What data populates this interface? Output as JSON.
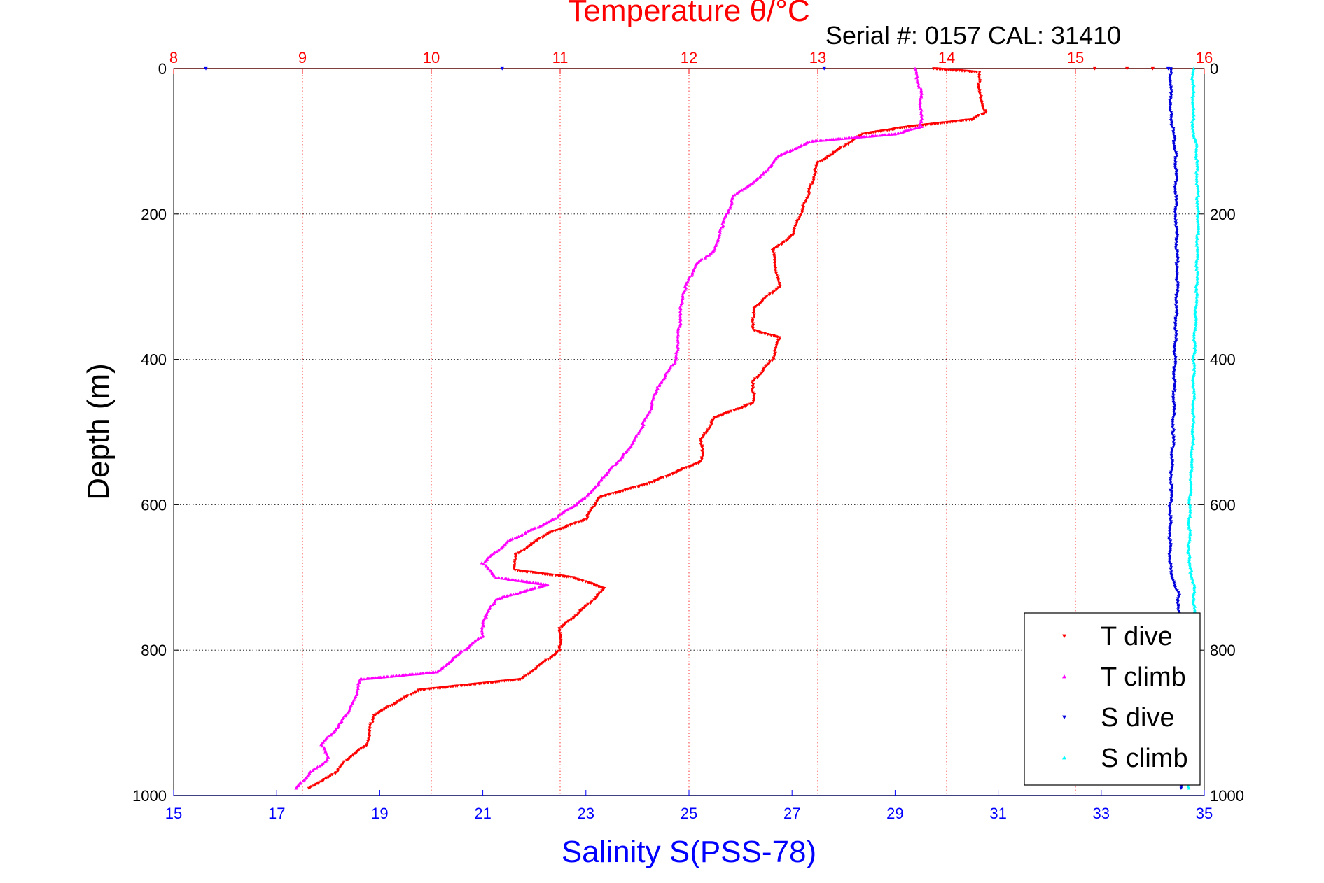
{
  "chart_data": {
    "type": "scatter",
    "title": "Temperature θ/°C",
    "subtitle": "Serial #: 0157  CAL: 31410",
    "ylabel": "Depth (m)",
    "xlabel_bottom": "Salinity S(PSS-78)",
    "ylim": [
      0,
      1000
    ],
    "y_reversed": true,
    "yticks": [
      0,
      200,
      400,
      600,
      800,
      1000
    ],
    "x_top": {
      "label": "Temperature θ/°C",
      "lim": [
        8,
        16
      ],
      "ticks": [
        8,
        9,
        10,
        11,
        12,
        13,
        14,
        15,
        16
      ],
      "grid": true
    },
    "x_bottom": {
      "label": "Salinity S(PSS-78)",
      "lim": [
        15,
        35
      ],
      "ticks": [
        15,
        17,
        19,
        21,
        23,
        25,
        27,
        29,
        31,
        33,
        35
      ]
    },
    "legend_position": "bottom-right",
    "colors": {
      "temp_axis": "#ff0000",
      "sal_axis": "#0000ff",
      "t_dive": "#ff0000",
      "t_climb": "#ff00ff",
      "s_dive": "#0000dd",
      "s_climb": "#00ffff"
    },
    "series": [
      {
        "name": "T dive",
        "axis": "temperature",
        "marker": "triangle-down",
        "points": [
          [
            13.9,
            0
          ],
          [
            14.25,
            5
          ],
          [
            14.25,
            30
          ],
          [
            14.3,
            60
          ],
          [
            14.2,
            70
          ],
          [
            13.7,
            80
          ],
          [
            13.35,
            90
          ],
          [
            13.0,
            130
          ],
          [
            12.95,
            160
          ],
          [
            12.9,
            185
          ],
          [
            12.8,
            230
          ],
          [
            12.65,
            250
          ],
          [
            12.7,
            300
          ],
          [
            12.5,
            330
          ],
          [
            12.5,
            360
          ],
          [
            12.7,
            370
          ],
          [
            12.65,
            400
          ],
          [
            12.5,
            430
          ],
          [
            12.5,
            460
          ],
          [
            12.2,
            480
          ],
          [
            12.1,
            510
          ],
          [
            12.1,
            540
          ],
          [
            11.7,
            570
          ],
          [
            11.3,
            590
          ],
          [
            11.2,
            620
          ],
          [
            10.9,
            640
          ],
          [
            10.65,
            670
          ],
          [
            10.65,
            690
          ],
          [
            11.1,
            700
          ],
          [
            11.35,
            715
          ],
          [
            11.2,
            740
          ],
          [
            11.0,
            770
          ],
          [
            11.0,
            800
          ],
          [
            10.7,
            840
          ],
          [
            9.9,
            855
          ],
          [
            9.75,
            870
          ],
          [
            9.55,
            890
          ],
          [
            9.5,
            930
          ],
          [
            9.35,
            950
          ],
          [
            9.25,
            970
          ],
          [
            9.05,
            990
          ]
        ]
      },
      {
        "name": "T climb",
        "axis": "temperature",
        "marker": "triangle-up",
        "points": [
          [
            13.75,
            0
          ],
          [
            13.8,
            30
          ],
          [
            13.8,
            80
          ],
          [
            13.6,
            90
          ],
          [
            12.95,
            100
          ],
          [
            12.7,
            120
          ],
          [
            12.55,
            150
          ],
          [
            12.35,
            175
          ],
          [
            12.25,
            220
          ],
          [
            12.2,
            250
          ],
          [
            12.05,
            270
          ],
          [
            11.95,
            310
          ],
          [
            11.9,
            400
          ],
          [
            11.75,
            440
          ],
          [
            11.7,
            470
          ],
          [
            11.55,
            520
          ],
          [
            11.35,
            560
          ],
          [
            11.2,
            590
          ],
          [
            10.95,
            620
          ],
          [
            10.6,
            650
          ],
          [
            10.4,
            680
          ],
          [
            10.5,
            700
          ],
          [
            10.9,
            710
          ],
          [
            10.5,
            730
          ],
          [
            10.4,
            760
          ],
          [
            10.4,
            780
          ],
          [
            10.25,
            800
          ],
          [
            10.05,
            830
          ],
          [
            9.45,
            840
          ],
          [
            9.4,
            870
          ],
          [
            9.3,
            900
          ],
          [
            9.15,
            930
          ],
          [
            9.2,
            950
          ],
          [
            9.05,
            970
          ],
          [
            8.95,
            990
          ]
        ]
      },
      {
        "name": "S dive",
        "axis": "salinity",
        "marker": "triangle-down",
        "points": [
          [
            34.35,
            0
          ],
          [
            34.35,
            60
          ],
          [
            34.45,
            120
          ],
          [
            34.45,
            200
          ],
          [
            34.48,
            280
          ],
          [
            34.45,
            350
          ],
          [
            34.42,
            420
          ],
          [
            34.4,
            500
          ],
          [
            34.35,
            580
          ],
          [
            34.33,
            650
          ],
          [
            34.35,
            700
          ],
          [
            34.5,
            720
          ],
          [
            34.5,
            760
          ],
          [
            34.52,
            820
          ],
          [
            34.55,
            900
          ],
          [
            34.55,
            990
          ]
        ]
      },
      {
        "name": "S climb",
        "axis": "salinity",
        "marker": "triangle-up",
        "points": [
          [
            34.78,
            0
          ],
          [
            34.78,
            80
          ],
          [
            34.85,
            110
          ],
          [
            34.88,
            200
          ],
          [
            34.85,
            300
          ],
          [
            34.8,
            400
          ],
          [
            34.78,
            500
          ],
          [
            34.72,
            600
          ],
          [
            34.7,
            680
          ],
          [
            34.8,
            710
          ],
          [
            34.8,
            740
          ],
          [
            34.85,
            800
          ],
          [
            34.8,
            880
          ],
          [
            34.75,
            950
          ],
          [
            34.7,
            990
          ]
        ]
      }
    ],
    "stray_markers_at_surface": [
      {
        "axis": "temperature",
        "color": "#0000ff",
        "x": 8.25
      },
      {
        "axis": "temperature",
        "color": "#0000ff",
        "x": 10.55
      },
      {
        "axis": "temperature",
        "color": "#0000ff",
        "x": 13.05
      },
      {
        "axis": "temperature",
        "color": "#ff0000",
        "x": 15.15
      },
      {
        "axis": "temperature",
        "color": "#ff0000",
        "x": 15.4
      },
      {
        "axis": "temperature",
        "color": "#ff0000",
        "x": 15.6
      },
      {
        "axis": "temperature",
        "color": "#0000ff",
        "x": 15.72
      }
    ]
  }
}
